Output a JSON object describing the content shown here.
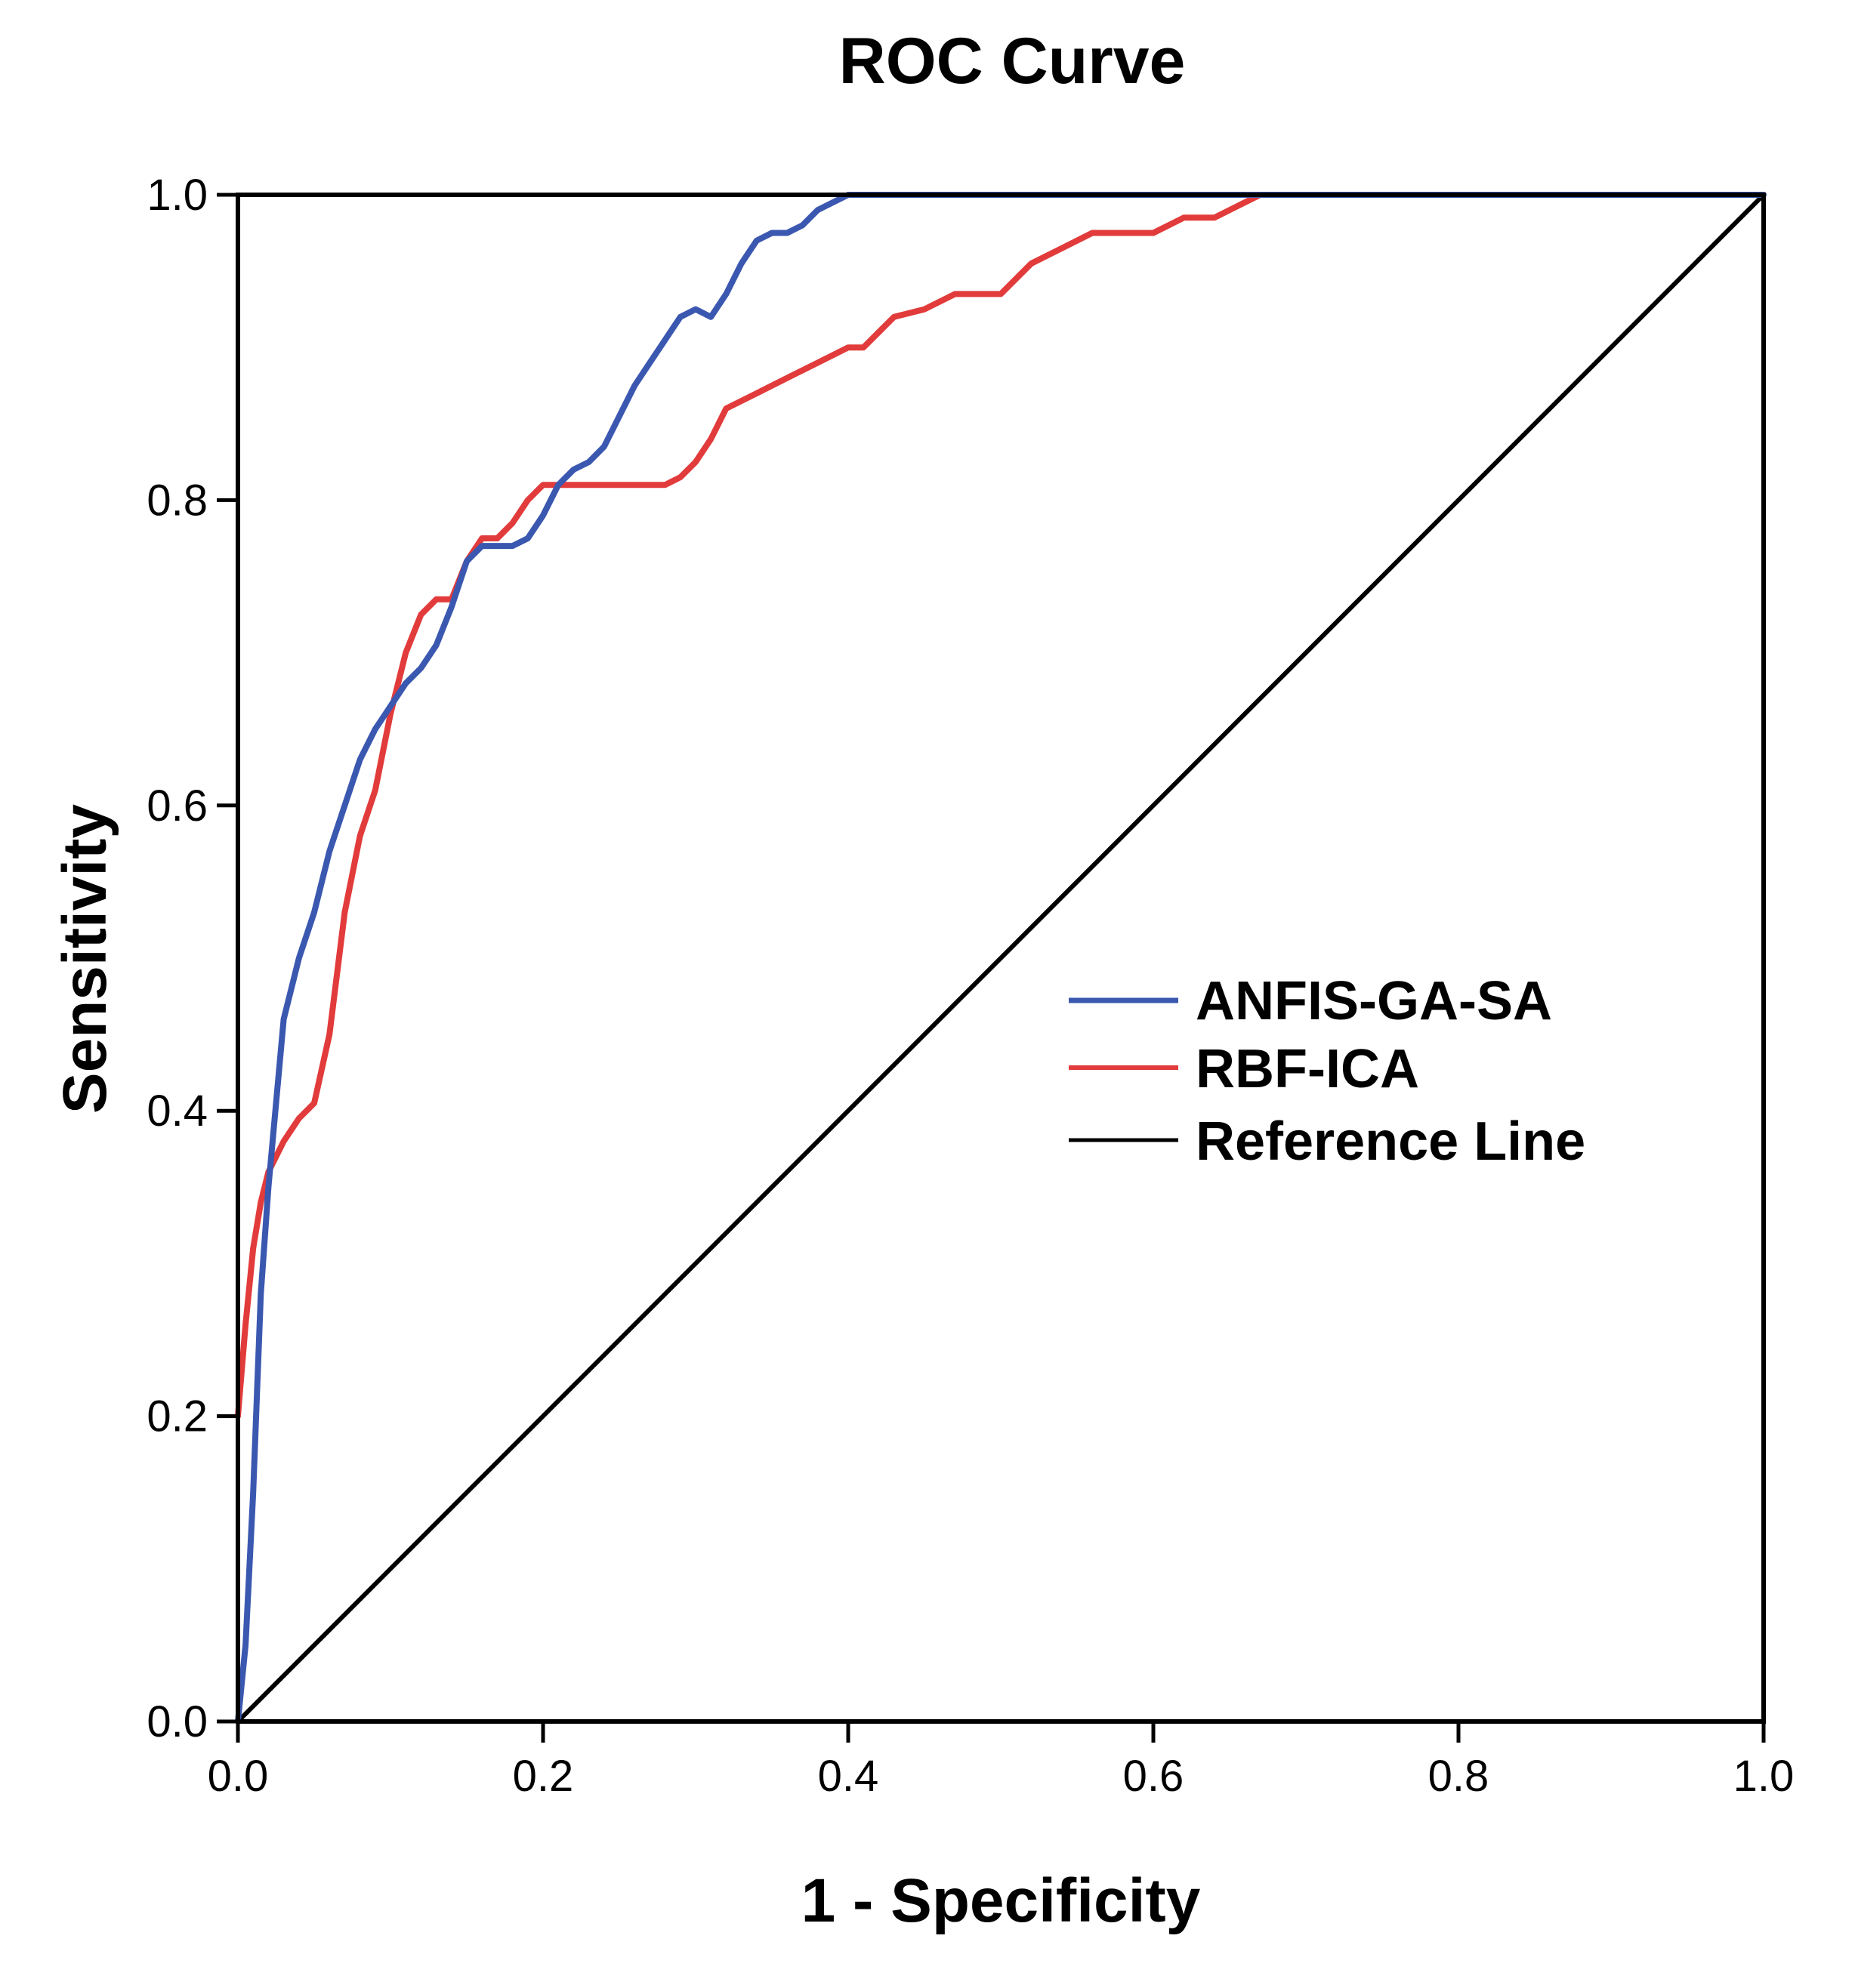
{
  "chart_data": {
    "type": "line",
    "title": "ROC Curve",
    "xlabel": "1 - Specificity",
    "ylabel": "Sensitivity",
    "xlim": [
      0.0,
      1.0
    ],
    "ylim": [
      0.0,
      1.0
    ],
    "x_ticks": [
      "0.0",
      "0.2",
      "0.4",
      "0.6",
      "0.8",
      "1.0"
    ],
    "y_ticks": [
      "0.0",
      "0.2",
      "0.4",
      "0.6",
      "0.8",
      "1.0"
    ],
    "x_tick_values": [
      0.0,
      0.2,
      0.4,
      0.6,
      0.8,
      1.0
    ],
    "y_tick_values": [
      0.0,
      0.2,
      0.4,
      0.6,
      0.8,
      1.0
    ],
    "grid": false,
    "legend_position": "center-right",
    "series": [
      {
        "name": "ANFIS-GA-SA",
        "color": "#3b58b0",
        "x": [
          0.0,
          0.005,
          0.01,
          0.015,
          0.02,
          0.03,
          0.04,
          0.05,
          0.06,
          0.07,
          0.08,
          0.09,
          0.1,
          0.11,
          0.12,
          0.13,
          0.14,
          0.15,
          0.16,
          0.17,
          0.18,
          0.19,
          0.2,
          0.21,
          0.22,
          0.23,
          0.24,
          0.25,
          0.26,
          0.27,
          0.28,
          0.29,
          0.3,
          0.31,
          0.32,
          0.33,
          0.34,
          0.35,
          0.36,
          0.37,
          0.38,
          0.39,
          0.4,
          0.42,
          0.45,
          0.5,
          0.6,
          0.7,
          0.8,
          0.9,
          1.0
        ],
        "y": [
          0.0,
          0.05,
          0.15,
          0.28,
          0.35,
          0.46,
          0.5,
          0.53,
          0.57,
          0.6,
          0.63,
          0.65,
          0.665,
          0.68,
          0.69,
          0.705,
          0.73,
          0.76,
          0.77,
          0.77,
          0.77,
          0.775,
          0.79,
          0.81,
          0.82,
          0.825,
          0.835,
          0.855,
          0.875,
          0.89,
          0.905,
          0.92,
          0.925,
          0.92,
          0.935,
          0.955,
          0.97,
          0.975,
          0.975,
          0.98,
          0.99,
          0.995,
          1.0,
          1.0,
          1.0,
          1.0,
          1.0,
          1.0,
          1.0,
          1.0,
          1.0
        ]
      },
      {
        "name": "RBF-ICA",
        "color": "#e23b3b",
        "x": [
          0.0,
          0.005,
          0.01,
          0.015,
          0.02,
          0.03,
          0.04,
          0.05,
          0.06,
          0.07,
          0.08,
          0.09,
          0.1,
          0.11,
          0.12,
          0.13,
          0.14,
          0.15,
          0.16,
          0.17,
          0.18,
          0.19,
          0.2,
          0.22,
          0.24,
          0.26,
          0.27,
          0.28,
          0.29,
          0.3,
          0.31,
          0.32,
          0.34,
          0.36,
          0.38,
          0.4,
          0.41,
          0.42,
          0.43,
          0.45,
          0.47,
          0.5,
          0.52,
          0.54,
          0.56,
          0.58,
          0.6,
          0.62,
          0.64,
          0.65,
          0.66,
          0.67,
          0.7,
          0.8,
          0.9,
          1.0
        ],
        "y": [
          0.2,
          0.26,
          0.31,
          0.34,
          0.36,
          0.38,
          0.395,
          0.405,
          0.45,
          0.53,
          0.58,
          0.61,
          0.66,
          0.7,
          0.725,
          0.735,
          0.735,
          0.76,
          0.775,
          0.775,
          0.785,
          0.8,
          0.81,
          0.81,
          0.81,
          0.81,
          0.81,
          0.81,
          0.815,
          0.825,
          0.84,
          0.86,
          0.87,
          0.88,
          0.89,
          0.9,
          0.9,
          0.91,
          0.92,
          0.925,
          0.935,
          0.935,
          0.955,
          0.965,
          0.975,
          0.975,
          0.975,
          0.985,
          0.985,
          0.99,
          0.995,
          1.0,
          1.0,
          1.0,
          1.0,
          1.0
        ]
      },
      {
        "name": "Reference Line",
        "color": "#000000",
        "x": [
          0.0,
          1.0
        ],
        "y": [
          0.0,
          1.0
        ]
      }
    ]
  }
}
